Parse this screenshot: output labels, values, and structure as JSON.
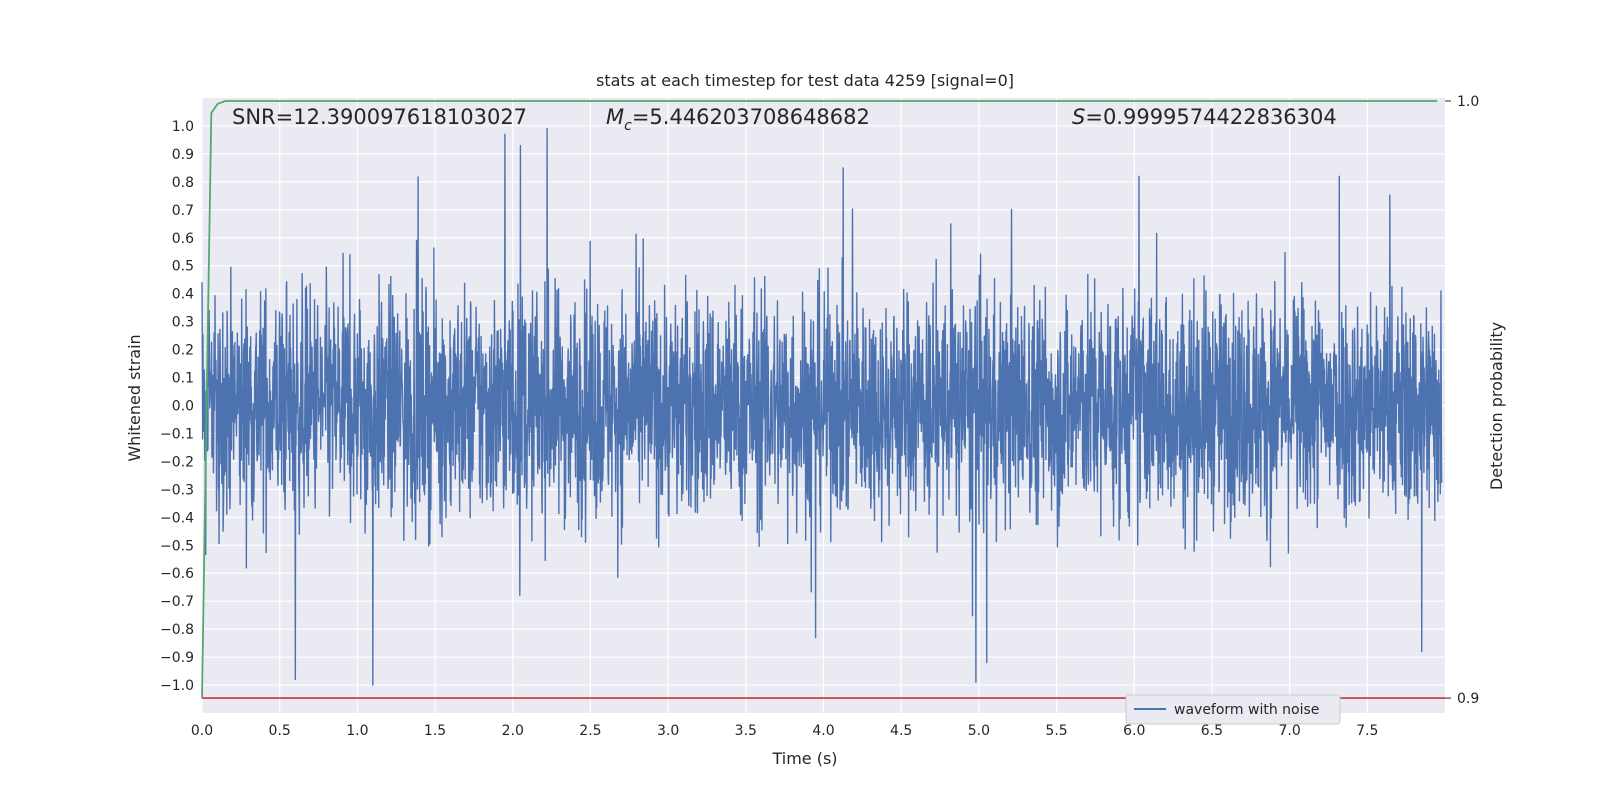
{
  "chart_data": {
    "type": "line",
    "title": "stats at each timestep for test data 4259 [signal=0]",
    "xlabel": "Time (s)",
    "ylabel": "Whitened strain",
    "y2label": "Detection probability",
    "xlim": [
      0.0,
      8.0
    ],
    "ylim": [
      -1.1,
      1.1
    ],
    "y2lim": [
      0.8975,
      1.0005
    ],
    "x_ticks": [
      "0.0",
      "0.5",
      "1.0",
      "1.5",
      "2.0",
      "2.5",
      "3.0",
      "3.5",
      "4.0",
      "4.5",
      "5.0",
      "5.5",
      "6.0",
      "6.5",
      "7.0",
      "7.5"
    ],
    "y_ticks": [
      "1.0",
      "0.9",
      "0.8",
      "0.7",
      "0.6",
      "0.5",
      "0.4",
      "0.3",
      "0.2",
      "0.1",
      "0.0",
      "−0.1",
      "−0.2",
      "−0.3",
      "−0.4",
      "−0.5",
      "−0.6",
      "−0.7",
      "−0.8",
      "−0.9",
      "−1.0"
    ],
    "y2_ticks": [
      "1.0",
      "0.9"
    ],
    "grid": true,
    "legend_position": "lower-right",
    "annotations": {
      "snr": "SNR=12.390097618103027",
      "mc_prefix": "M",
      "mc_sub": "c",
      "mc_value": "=5.446203708648682",
      "s_prefix": "S",
      "s_value": "=0.9999574422836304"
    },
    "series": [
      {
        "name": "waveform with noise",
        "axis": "left",
        "color": "#4c72b0",
        "description_of_values": "dense whitened-noise trace, roughly ±0.5 with spikes to about ±1.0",
        "spikes": [
          {
            "x": 0.6,
            "y": -0.98
          },
          {
            "x": 1.1,
            "y": -1.0
          },
          {
            "x": 1.95,
            "y": 0.97
          },
          {
            "x": 2.22,
            "y": 0.99
          },
          {
            "x": 2.05,
            "y": 0.93
          },
          {
            "x": 3.95,
            "y": -0.83
          },
          {
            "x": 4.98,
            "y": -0.99
          },
          {
            "x": 5.05,
            "y": -0.92
          },
          {
            "x": 6.03,
            "y": 0.82
          },
          {
            "x": 7.32,
            "y": 0.82
          },
          {
            "x": 7.85,
            "y": -0.88
          }
        ]
      },
      {
        "name": "",
        "axis": "right",
        "color": "#55a868",
        "x": [
          0.0,
          0.03,
          0.06,
          0.1,
          0.15,
          7.95
        ],
        "y": [
          0.9,
          0.95,
          0.998,
          0.9995,
          1.0,
          1.0
        ]
      },
      {
        "name": "",
        "axis": "right",
        "color": "#c44e52",
        "x": [
          0.0,
          8.0
        ],
        "y": [
          0.9,
          0.9
        ]
      }
    ]
  }
}
